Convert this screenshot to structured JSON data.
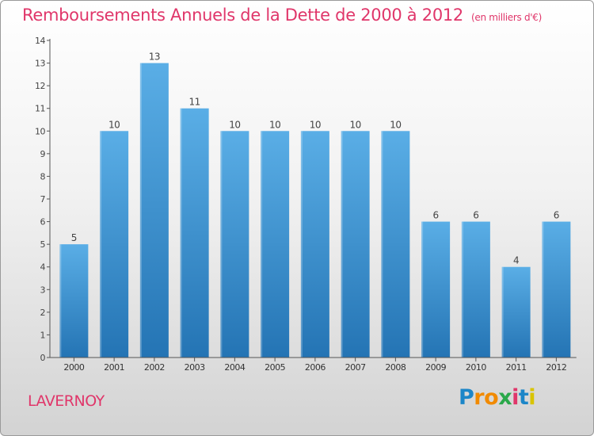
{
  "header": {
    "title": "Remboursements Annuels de la Dette de 2000 à 2012",
    "unit": "(en milliers d'€)"
  },
  "footer": {
    "town": "LAVERNOY",
    "logo_text": "Proxiti"
  },
  "colors": {
    "accent": "#e0366a",
    "bar_top": "#5aaee6",
    "bar_bottom": "#2474b4",
    "axis": "#555555"
  },
  "chart_data": {
    "type": "bar",
    "categories": [
      "2000",
      "2001",
      "2002",
      "2003",
      "2004",
      "2005",
      "2006",
      "2007",
      "2008",
      "2009",
      "2010",
      "2011",
      "2012"
    ],
    "values": [
      5,
      10,
      13,
      11,
      10,
      10,
      10,
      10,
      10,
      6,
      6,
      4,
      6
    ],
    "title": "Remboursements Annuels de la Dette de 2000 à 2012",
    "xlabel": "",
    "ylabel": "",
    "ylim": [
      0,
      14
    ],
    "yticks": [
      0,
      1,
      2,
      3,
      4,
      5,
      6,
      7,
      8,
      9,
      10,
      11,
      12,
      13,
      14
    ],
    "grid": false,
    "data_labels": true
  }
}
